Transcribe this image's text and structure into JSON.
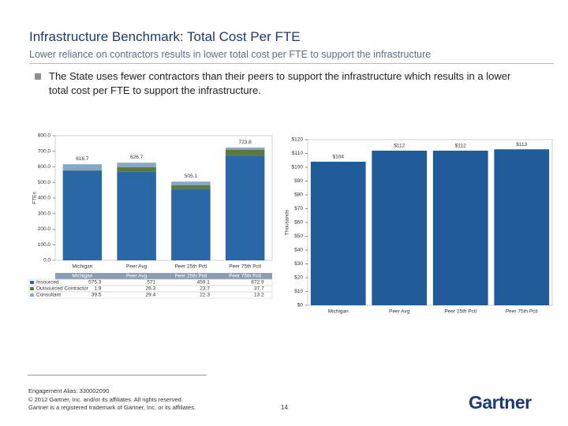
{
  "slide": {
    "title": "Infrastructure Benchmark: Total Cost Per FTE",
    "subtitle": "Lower reliance on contractors results in lower total cost per FTE to support the infrastructure",
    "bullet": "The State uses fewer contractors than their peers to support the infrastructure which results in a lower total cost per FTE to support the infrastructure.",
    "footer": [
      "Engagement Alias: 330002090",
      "© 2012 Gartner, Inc. and/or its affiliates. All rights reserved.",
      "Gartner is a registered trademark of Gartner, Inc. or its affiliates."
    ],
    "page_number": "14",
    "logo": "Gartner"
  },
  "chart_data": [
    {
      "type": "stacked_bar",
      "y_label": "FTEs",
      "categories": [
        "Michigan",
        "Peer Avg",
        "Peer 25th Pctl",
        "Peer 75th Pctl"
      ],
      "series": [
        {
          "name": "Insourced",
          "color": "#2a67a6",
          "values": [
            575.3,
            571.0,
            459.1,
            672.9
          ]
        },
        {
          "name": "Outsourced Contractor",
          "color": "#5e7a38",
          "values": [
            1.9,
            26.3,
            23.7,
            37.7
          ]
        },
        {
          "name": "Consultant",
          "color": "#86aac6",
          "values": [
            39.5,
            29.4,
            22.3,
            13.2
          ]
        }
      ],
      "totals": [
        616.7,
        626.7,
        505.1,
        723.8
      ],
      "ylim": [
        0,
        800
      ],
      "yticks": [
        {
          "value": 0,
          "label": "0.0"
        },
        {
          "value": 100,
          "label": "100.0"
        },
        {
          "value": 200,
          "label": "200.0"
        },
        {
          "value": 300,
          "label": "300.0"
        },
        {
          "value": 400,
          "label": "400.0"
        },
        {
          "value": 500,
          "label": "500.0"
        },
        {
          "value": 600,
          "label": "600.0"
        },
        {
          "value": 700,
          "label": "700.0"
        },
        {
          "value": 800,
          "label": "800.0"
        }
      ],
      "data_table": true,
      "grid": false
    },
    {
      "type": "bar",
      "y_label": "Thousands",
      "categories": [
        "Michigan",
        "Peer Avg",
        "Peer 25th Pctl",
        "Peer 75th Pctl"
      ],
      "values": [
        104,
        112,
        112,
        113
      ],
      "value_labels": [
        "$104",
        "$112",
        "$112",
        "$113"
      ],
      "color": "#1f5c99",
      "ylim": [
        0,
        120
      ],
      "yticks": [
        {
          "value": 0,
          "label": "$0"
        },
        {
          "value": 10,
          "label": "$10"
        },
        {
          "value": 20,
          "label": "$20"
        },
        {
          "value": 30,
          "label": "$30"
        },
        {
          "value": 40,
          "label": "$40"
        },
        {
          "value": 50,
          "label": "$50"
        },
        {
          "value": 60,
          "label": "$60"
        },
        {
          "value": 70,
          "label": "$70"
        },
        {
          "value": 80,
          "label": "$80"
        },
        {
          "value": 90,
          "label": "$90"
        },
        {
          "value": 100,
          "label": "$100"
        },
        {
          "value": 110,
          "label": "$110"
        },
        {
          "value": 120,
          "label": "$120"
        }
      ],
      "data_table": false,
      "grid": false
    }
  ]
}
